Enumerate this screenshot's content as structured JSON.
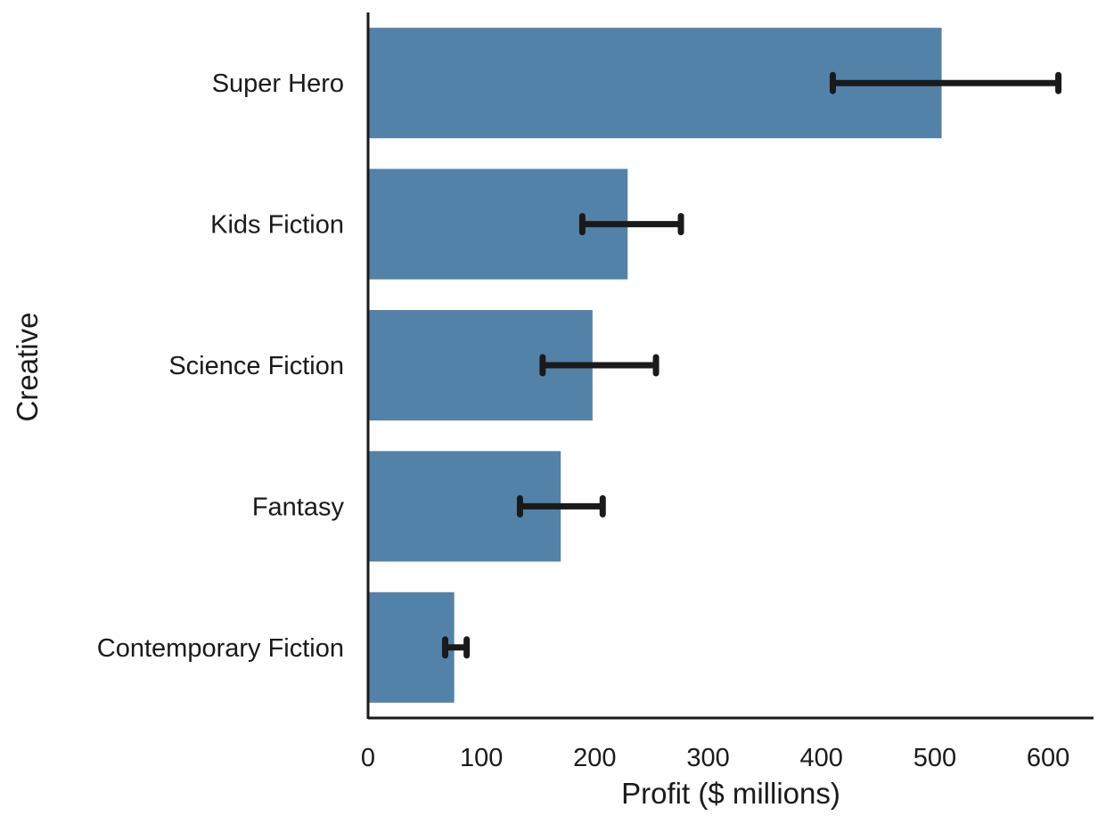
{
  "chart_data": {
    "type": "bar",
    "orientation": "horizontal",
    "categories": [
      "Super Hero",
      "Kids Fiction",
      "Science Fiction",
      "Fantasy",
      "Contemporary Fiction"
    ],
    "values": [
      506,
      229,
      198,
      170,
      76
    ],
    "error_low": [
      410,
      189,
      154,
      134,
      68
    ],
    "error_high": [
      609,
      276,
      254,
      207,
      87
    ],
    "xlabel": "Profit ($ millions)",
    "ylabel": "Creative",
    "xlim": [
      0,
      640
    ],
    "xticks": [
      0,
      100,
      200,
      300,
      400,
      500,
      600
    ],
    "grid": false,
    "colors": {
      "bar": "#5282a8",
      "error": "#1a1a1a",
      "axis": "#1a1a1a"
    }
  }
}
